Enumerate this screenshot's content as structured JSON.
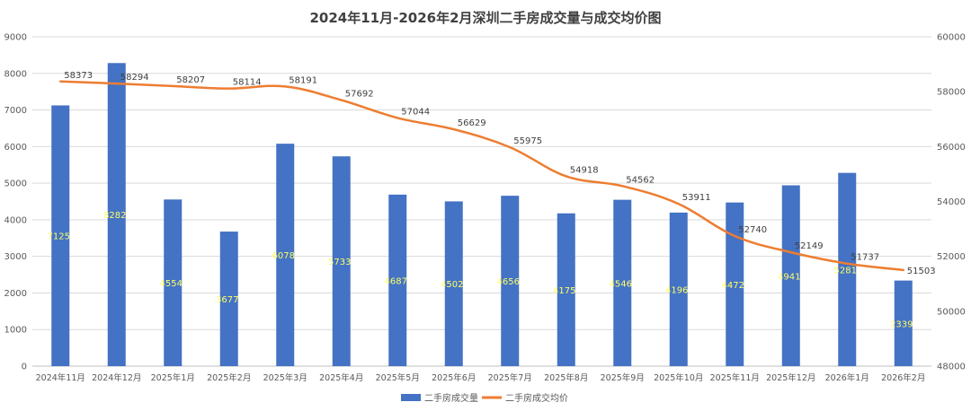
{
  "chart_data": {
    "type": "bar",
    "title": "2024年11月-2026年2月深圳二手房成交量与成交均价图",
    "categories": [
      "2024年11月",
      "2024年12月",
      "2025年1月",
      "2025年2月",
      "2025年3月",
      "2025年4月",
      "2025年5月",
      "2025年6月",
      "2025年7月",
      "2025年8月",
      "2025年9月",
      "2025年10月",
      "2025年11月",
      "2025年12月",
      "2026年1月",
      "2026年2月"
    ],
    "series": [
      {
        "name": "二手房成交量",
        "type": "bar",
        "axis": "left",
        "color": "#4472C4",
        "label_color": "#FFFF66",
        "values": [
          7125,
          8282,
          4554,
          3677,
          6078,
          5733,
          4687,
          4502,
          4656,
          4175,
          4546,
          4196,
          4472,
          4941,
          5281,
          2339
        ],
        "labels": [
          "7125",
          "8282",
          "4554",
          "3677",
          "6078",
          "5733",
          "4687",
          "4502",
          "4656",
          "4175",
          "4546",
          "4196",
          "4472",
          "4941",
          "5281",
          "2339"
        ]
      },
      {
        "name": "二手房成交均价",
        "type": "line",
        "axis": "right",
        "color": "#ED7D31",
        "values": [
          58373,
          58294,
          58207,
          58114,
          58191,
          57692,
          57044,
          56629,
          55975,
          54918,
          54562,
          53911,
          52740,
          52149,
          51737,
          51503
        ],
        "labels": [
          "58373",
          "58294",
          "58207",
          "58114",
          "58191",
          "57692",
          "57044",
          "56629",
          "55975",
          "54918",
          "54562",
          "53911",
          "52740",
          "52149",
          "51737",
          "51503"
        ]
      }
    ],
    "ylim_left": [
      0,
      9000
    ],
    "yticks_left": [
      0,
      1000,
      2000,
      3000,
      4000,
      5000,
      6000,
      7000,
      8000,
      9000
    ],
    "ytick_labels_left": [
      "0",
      "1000",
      "2000",
      "3000",
      "4000",
      "5000",
      "6000",
      "7000",
      "8000",
      "9000"
    ],
    "ylim_right": [
      48000,
      60000
    ],
    "yticks_right": [
      48000,
      50000,
      52000,
      54000,
      56000,
      58000,
      60000
    ],
    "ytick_labels_right": [
      "48000",
      "50000",
      "52000",
      "54000",
      "56000",
      "58000",
      "60000"
    ],
    "grid": true,
    "legend_position": "bottom"
  }
}
